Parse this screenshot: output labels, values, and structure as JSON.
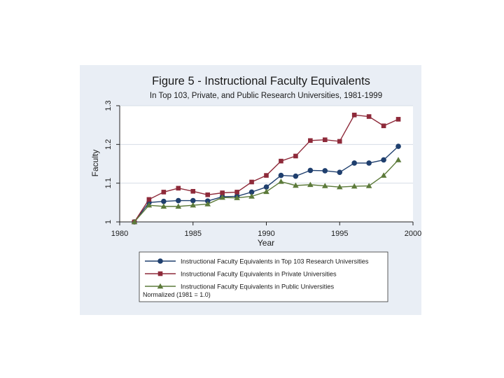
{
  "chart_data": {
    "type": "line",
    "title": "Figure 5 - Instructional Faculty Equivalents",
    "subtitle": "In Top 103, Private, and Public Research Universities, 1981-1999",
    "xlabel": "Year",
    "ylabel": "Faculty",
    "xlim": [
      1980,
      2000
    ],
    "ylim": [
      1.0,
      1.3
    ],
    "xticks": [
      "1980",
      "1985",
      "1990",
      "1995",
      "2000"
    ],
    "yticks": [
      "1",
      "1.1",
      "1.2",
      "1.3"
    ],
    "grid": true,
    "legend_position": "bottom",
    "legend_note": "Normalized (1981 = 1.0)",
    "x": [
      1981,
      1982,
      1983,
      1984,
      1985,
      1986,
      1987,
      1988,
      1989,
      1990,
      1991,
      1992,
      1993,
      1994,
      1995,
      1996,
      1997,
      1998,
      1999
    ],
    "series": [
      {
        "name": "Instructional Faculty Equivalents in Top 103 Research Universities",
        "color": "#1f3f6e",
        "marker": "circle",
        "values": [
          1.0,
          1.05,
          1.053,
          1.055,
          1.055,
          1.054,
          1.065,
          1.066,
          1.077,
          1.09,
          1.12,
          1.118,
          1.133,
          1.132,
          1.128,
          1.152,
          1.152,
          1.16,
          1.195
        ]
      },
      {
        "name": "Instructional Faculty Equivalents in Private Universities",
        "color": "#8e2a3a",
        "marker": "square",
        "values": [
          1.0,
          1.058,
          1.077,
          1.087,
          1.079,
          1.07,
          1.075,
          1.077,
          1.103,
          1.12,
          1.157,
          1.17,
          1.21,
          1.212,
          1.208,
          1.276,
          1.272,
          1.248,
          1.265
        ]
      },
      {
        "name": "Instructional Faculty Equivalents in Public Universities",
        "color": "#5c7a3a",
        "marker": "triangle",
        "values": [
          1.0,
          1.043,
          1.04,
          1.04,
          1.043,
          1.046,
          1.063,
          1.062,
          1.066,
          1.078,
          1.104,
          1.094,
          1.096,
          1.093,
          1.09,
          1.092,
          1.093,
          1.12,
          1.16
        ]
      }
    ]
  }
}
